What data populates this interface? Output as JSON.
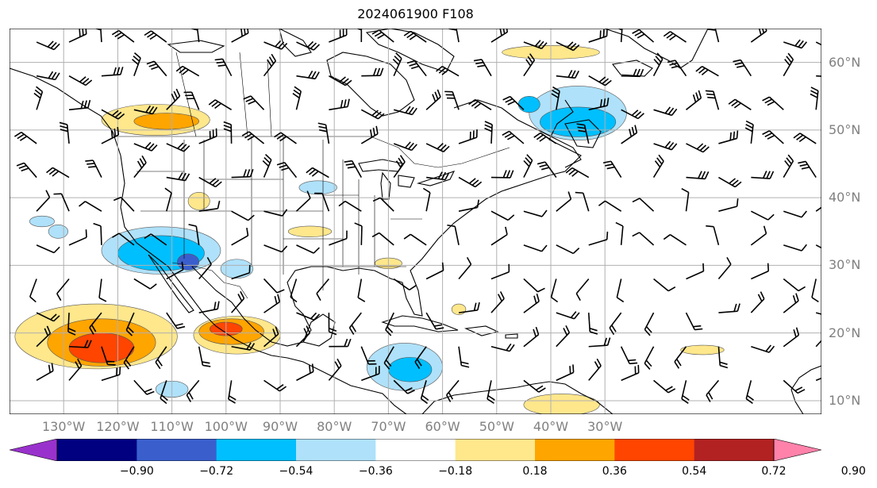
{
  "title": "2024061900 F108",
  "map": {
    "projection": "equirectangular",
    "lon_range": [
      -140,
      10
    ],
    "lat_range": [
      8,
      65
    ],
    "gridlines": true,
    "lon_ticks": [
      {
        "lon": -130,
        "label": "130°W"
      },
      {
        "lon": -120,
        "label": "120°W"
      },
      {
        "lon": -110,
        "label": "110°W"
      },
      {
        "lon": -100,
        "label": "100°W"
      },
      {
        "lon": -90,
        "label": "90°W"
      },
      {
        "lon": -80,
        "label": "80°W"
      },
      {
        "lon": -70,
        "label": "70°W"
      },
      {
        "lon": -60,
        "label": "60°W"
      },
      {
        "lon": -50,
        "label": "50°W"
      },
      {
        "lon": -40,
        "label": "40°W"
      },
      {
        "lon": -30,
        "label": "30°W"
      }
    ],
    "lat_ticks": [
      {
        "lat": 60,
        "label": "60°N"
      },
      {
        "lat": 50,
        "label": "50°N"
      },
      {
        "lat": 40,
        "label": "40°N"
      },
      {
        "lat": 30,
        "label": "30°N"
      },
      {
        "lat": 20,
        "label": "20°N"
      },
      {
        "lat": 10,
        "label": "10°N"
      }
    ]
  },
  "colorbar": {
    "colors": [
      "#9932cc",
      "#000080",
      "#3a5fcd",
      "#00bfff",
      "#afe1fa",
      "#ffffff",
      "#ffe78c",
      "#ffa500",
      "#ff4500",
      "#b22222",
      "#ff82ab"
    ],
    "tick_labels": [
      "−0.90",
      "−0.72",
      "−0.54",
      "−0.36",
      "−0.18",
      "0.18",
      "0.36",
      "0.54",
      "0.72",
      "0.90"
    ],
    "extend": "both"
  },
  "anomaly_regions": [
    {
      "lon": -113,
      "lat": 51.5,
      "rx": 10,
      "ry": 2.3,
      "level": "pos1"
    },
    {
      "lon": -111,
      "lat": 51.3,
      "rx": 6,
      "ry": 1.2,
      "level": "pos2"
    },
    {
      "lon": -40,
      "lat": 61.5,
      "rx": 9,
      "ry": 1.0,
      "level": "pos1"
    },
    {
      "lon": -35,
      "lat": 52.5,
      "rx": 9,
      "ry": 4,
      "level": "neg1"
    },
    {
      "lon": -35,
      "lat": 51.2,
      "rx": 7,
      "ry": 2.2,
      "level": "neg2"
    },
    {
      "lon": -44,
      "lat": 53.8,
      "rx": 2,
      "ry": 1.2,
      "level": "neg2"
    },
    {
      "lon": -112,
      "lat": 32.2,
      "rx": 11,
      "ry": 3.5,
      "level": "neg1"
    },
    {
      "lon": -112,
      "lat": 31.8,
      "rx": 8,
      "ry": 2.6,
      "level": "neg2"
    },
    {
      "lon": -107,
      "lat": 30.5,
      "rx": 2,
      "ry": 1.2,
      "level": "neg3"
    },
    {
      "lon": -124,
      "lat": 19.5,
      "rx": 15,
      "ry": 4.8,
      "level": "pos1"
    },
    {
      "lon": -123,
      "lat": 18.6,
      "rx": 10,
      "ry": 3.5,
      "level": "pos2"
    },
    {
      "lon": -123,
      "lat": 17.8,
      "rx": 6,
      "ry": 2.2,
      "level": "pos3"
    },
    {
      "lon": -98,
      "lat": 19.7,
      "rx": 8,
      "ry": 2.8,
      "level": "pos1"
    },
    {
      "lon": -99,
      "lat": 20.2,
      "rx": 6,
      "ry": 1.9,
      "level": "pos2"
    },
    {
      "lon": -100,
      "lat": 20.6,
      "rx": 3,
      "ry": 1.0,
      "level": "pos3"
    },
    {
      "lon": -67,
      "lat": 15,
      "rx": 7,
      "ry": 3.5,
      "level": "neg1"
    },
    {
      "lon": -66,
      "lat": 14.6,
      "rx": 4,
      "ry": 1.8,
      "level": "neg2"
    },
    {
      "lon": -83,
      "lat": 41.5,
      "rx": 3.5,
      "ry": 1.0,
      "level": "neg1"
    },
    {
      "lon": -84.5,
      "lat": 35,
      "rx": 4,
      "ry": 0.8,
      "level": "pos1"
    },
    {
      "lon": -105,
      "lat": 39.5,
      "rx": 2,
      "ry": 1.3,
      "level": "pos1"
    },
    {
      "lon": -98,
      "lat": 29.5,
      "rx": 3,
      "ry": 1.4,
      "level": "neg1"
    },
    {
      "lon": -134,
      "lat": 36.5,
      "rx": 2.3,
      "ry": 0.8,
      "level": "neg1"
    },
    {
      "lon": -131,
      "lat": 35,
      "rx": 1.8,
      "ry": 1.0,
      "level": "neg1"
    },
    {
      "lon": -70,
      "lat": 30.3,
      "rx": 2.5,
      "ry": 0.8,
      "level": "pos1"
    },
    {
      "lon": -57,
      "lat": 23.5,
      "rx": 1.3,
      "ry": 0.8,
      "level": "pos1"
    },
    {
      "lon": -110,
      "lat": 11.7,
      "rx": 3,
      "ry": 1.2,
      "level": "neg1"
    },
    {
      "lon": -38,
      "lat": 9.4,
      "rx": 7,
      "ry": 1.6,
      "level": "pos1"
    },
    {
      "lon": -12,
      "lat": 17.5,
      "rx": 4,
      "ry": 0.7,
      "level": "pos1"
    }
  ],
  "level_colors": {
    "neg3": "#3a5fcd",
    "neg2": "#00bfff",
    "neg1": "#afe1fa",
    "pos1": "#ffe78c",
    "pos2": "#ffa500",
    "pos3": "#ff4500"
  },
  "wind_grid": {
    "lon_start": -135,
    "lon_end": 10,
    "lon_step": 6,
    "lat_start": 63,
    "lat_end": 9,
    "lat_step": -5
  }
}
